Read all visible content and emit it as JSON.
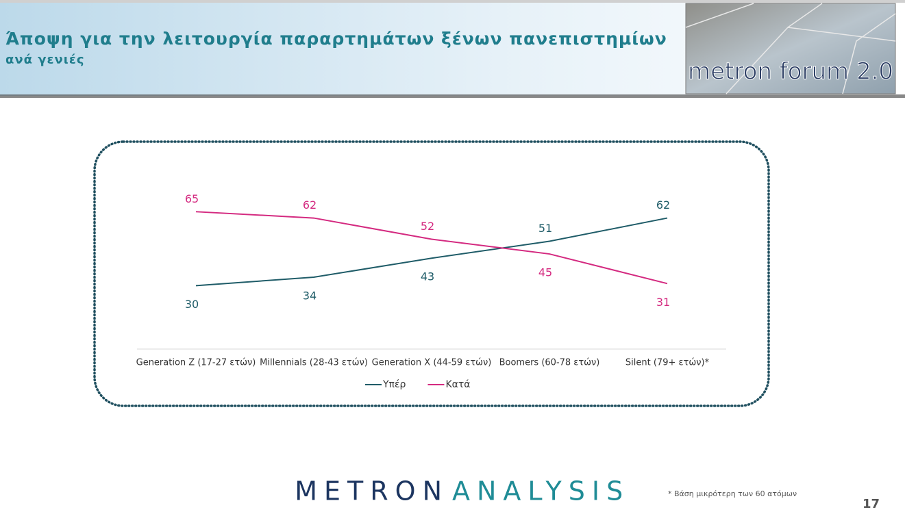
{
  "header": {
    "title": "Άποψη για την λειτουργία παραρτημάτων ξένων πανεπιστημίων",
    "subtitle": "ανά γενιές",
    "logo": "metron forum 2.0"
  },
  "chart_data": {
    "type": "line",
    "categories": [
      "Generation Z (17-27 ετών)",
      "Millennials (28-43 ετών)",
      "Generation X (44-59 ετών)",
      "Boomers (60-78 ετών)",
      "Silent (79+ ετών)*"
    ],
    "series": [
      {
        "name": "Υπέρ",
        "color": "#1f5c68",
        "values": [
          30,
          34,
          43,
          51,
          62
        ]
      },
      {
        "name": "Κατά",
        "color": "#d42a80",
        "values": [
          65,
          62,
          52,
          45,
          31
        ]
      }
    ],
    "ylim": [
      0,
      80
    ],
    "legend": "bottom"
  },
  "footer": {
    "brand_left": "METRON",
    "brand_right": "ANALYSIS",
    "note": "*  Βάση μικρότερη των 60 ατόμων",
    "page": "17"
  }
}
